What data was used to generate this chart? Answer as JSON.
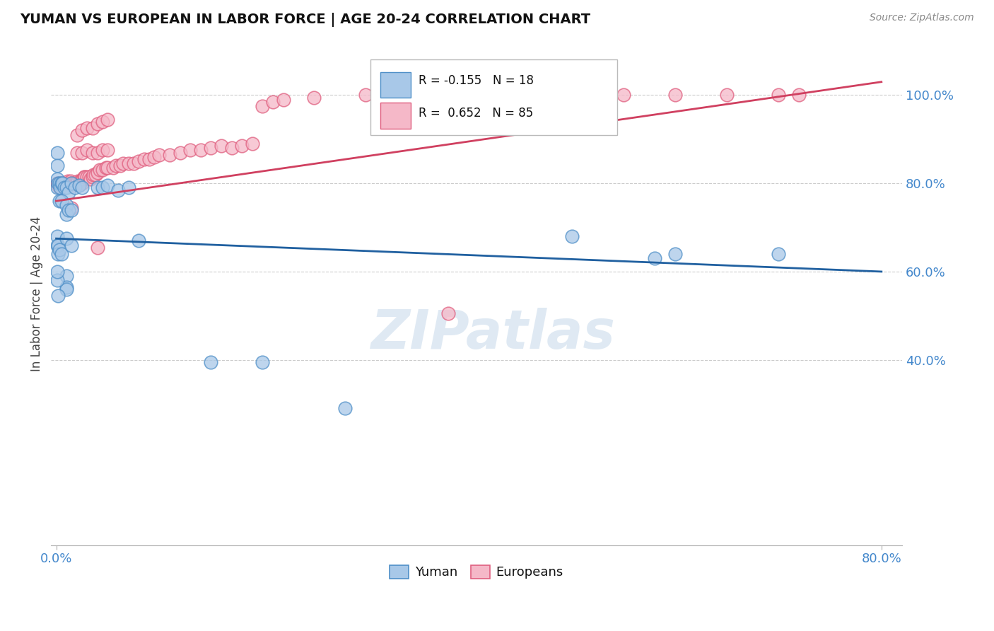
{
  "title": "YUMAN VS EUROPEAN IN LABOR FORCE | AGE 20-24 CORRELATION CHART",
  "source": "Source: ZipAtlas.com",
  "ylabel": "In Labor Force | Age 20-24",
  "xlim": [
    -0.005,
    0.82
  ],
  "ylim": [
    -0.02,
    1.12
  ],
  "yticks": [
    0.4,
    0.6,
    0.8,
    1.0
  ],
  "ytick_labels": [
    "40.0%",
    "60.0%",
    "80.0%",
    "100.0%"
  ],
  "xtick_left": "0.0%",
  "xtick_right": "80.0%",
  "watermark": "ZIPatlas",
  "blue_color": "#a8c8e8",
  "pink_color": "#f5b8c8",
  "blue_edge_color": "#5090c8",
  "pink_edge_color": "#e06080",
  "blue_line_color": "#2060a0",
  "pink_line_color": "#d04060",
  "tick_color": "#4488cc",
  "blue_line_y0": 0.675,
  "blue_line_y1": 0.6,
  "pink_line_x0": 0.0,
  "pink_line_y0": 0.76,
  "pink_line_x1": 0.8,
  "pink_line_y1": 1.03,
  "yuman_points": [
    [
      0.001,
      0.87
    ],
    [
      0.001,
      0.84
    ],
    [
      0.001,
      0.81
    ],
    [
      0.001,
      0.79
    ],
    [
      0.002,
      0.8
    ],
    [
      0.003,
      0.8
    ],
    [
      0.004,
      0.79
    ],
    [
      0.005,
      0.8
    ],
    [
      0.006,
      0.8
    ],
    [
      0.008,
      0.79
    ],
    [
      0.01,
      0.79
    ],
    [
      0.012,
      0.78
    ],
    [
      0.015,
      0.8
    ],
    [
      0.018,
      0.79
    ],
    [
      0.022,
      0.795
    ],
    [
      0.025,
      0.79
    ],
    [
      0.003,
      0.76
    ],
    [
      0.005,
      0.76
    ],
    [
      0.01,
      0.75
    ],
    [
      0.01,
      0.73
    ],
    [
      0.012,
      0.74
    ],
    [
      0.015,
      0.74
    ],
    [
      0.04,
      0.79
    ],
    [
      0.045,
      0.79
    ],
    [
      0.05,
      0.795
    ],
    [
      0.06,
      0.785
    ],
    [
      0.07,
      0.79
    ],
    [
      0.001,
      0.68
    ],
    [
      0.001,
      0.66
    ],
    [
      0.002,
      0.66
    ],
    [
      0.002,
      0.64
    ],
    [
      0.003,
      0.65
    ],
    [
      0.005,
      0.64
    ],
    [
      0.01,
      0.675
    ],
    [
      0.015,
      0.66
    ],
    [
      0.08,
      0.67
    ],
    [
      0.5,
      0.68
    ],
    [
      0.6,
      0.64
    ],
    [
      0.58,
      0.63
    ],
    [
      0.7,
      0.64
    ],
    [
      0.15,
      0.395
    ],
    [
      0.2,
      0.395
    ],
    [
      0.28,
      0.29
    ],
    [
      0.01,
      0.59
    ],
    [
      0.01,
      0.565
    ],
    [
      0.01,
      0.56
    ],
    [
      0.002,
      0.545
    ],
    [
      0.001,
      0.58
    ],
    [
      0.001,
      0.6
    ]
  ],
  "european_points": [
    [
      0.001,
      0.8
    ],
    [
      0.002,
      0.795
    ],
    [
      0.003,
      0.79
    ],
    [
      0.004,
      0.795
    ],
    [
      0.005,
      0.8
    ],
    [
      0.006,
      0.795
    ],
    [
      0.007,
      0.8
    ],
    [
      0.008,
      0.8
    ],
    [
      0.009,
      0.8
    ],
    [
      0.01,
      0.8
    ],
    [
      0.011,
      0.805
    ],
    [
      0.012,
      0.8
    ],
    [
      0.013,
      0.8
    ],
    [
      0.014,
      0.805
    ],
    [
      0.015,
      0.8
    ],
    [
      0.016,
      0.795
    ],
    [
      0.017,
      0.8
    ],
    [
      0.018,
      0.8
    ],
    [
      0.019,
      0.8
    ],
    [
      0.02,
      0.8
    ],
    [
      0.021,
      0.805
    ],
    [
      0.022,
      0.8
    ],
    [
      0.023,
      0.805
    ],
    [
      0.024,
      0.805
    ],
    [
      0.025,
      0.8
    ],
    [
      0.026,
      0.81
    ],
    [
      0.027,
      0.815
    ],
    [
      0.028,
      0.815
    ],
    [
      0.03,
      0.815
    ],
    [
      0.032,
      0.815
    ],
    [
      0.033,
      0.81
    ],
    [
      0.035,
      0.815
    ],
    [
      0.036,
      0.82
    ],
    [
      0.038,
      0.82
    ],
    [
      0.04,
      0.825
    ],
    [
      0.042,
      0.83
    ],
    [
      0.045,
      0.83
    ],
    [
      0.048,
      0.835
    ],
    [
      0.05,
      0.835
    ],
    [
      0.055,
      0.835
    ],
    [
      0.058,
      0.84
    ],
    [
      0.062,
      0.84
    ],
    [
      0.065,
      0.845
    ],
    [
      0.07,
      0.845
    ],
    [
      0.075,
      0.845
    ],
    [
      0.08,
      0.85
    ],
    [
      0.085,
      0.855
    ],
    [
      0.09,
      0.855
    ],
    [
      0.095,
      0.86
    ],
    [
      0.1,
      0.865
    ],
    [
      0.11,
      0.865
    ],
    [
      0.12,
      0.87
    ],
    [
      0.13,
      0.875
    ],
    [
      0.14,
      0.875
    ],
    [
      0.15,
      0.88
    ],
    [
      0.16,
      0.885
    ],
    [
      0.17,
      0.88
    ],
    [
      0.18,
      0.885
    ],
    [
      0.19,
      0.89
    ],
    [
      0.02,
      0.87
    ],
    [
      0.025,
      0.87
    ],
    [
      0.03,
      0.875
    ],
    [
      0.035,
      0.87
    ],
    [
      0.04,
      0.87
    ],
    [
      0.045,
      0.875
    ],
    [
      0.05,
      0.875
    ],
    [
      0.02,
      0.91
    ],
    [
      0.025,
      0.92
    ],
    [
      0.03,
      0.925
    ],
    [
      0.035,
      0.925
    ],
    [
      0.04,
      0.935
    ],
    [
      0.045,
      0.94
    ],
    [
      0.05,
      0.945
    ],
    [
      0.2,
      0.975
    ],
    [
      0.21,
      0.985
    ],
    [
      0.22,
      0.99
    ],
    [
      0.25,
      0.995
    ],
    [
      0.3,
      1.0
    ],
    [
      0.35,
      1.0
    ],
    [
      0.4,
      1.0
    ],
    [
      0.45,
      1.0
    ],
    [
      0.5,
      1.0
    ],
    [
      0.55,
      1.0
    ],
    [
      0.6,
      1.0
    ],
    [
      0.65,
      1.0
    ],
    [
      0.7,
      1.0
    ],
    [
      0.72,
      1.0
    ],
    [
      0.015,
      0.745
    ],
    [
      0.04,
      0.655
    ],
    [
      0.38,
      0.505
    ]
  ]
}
